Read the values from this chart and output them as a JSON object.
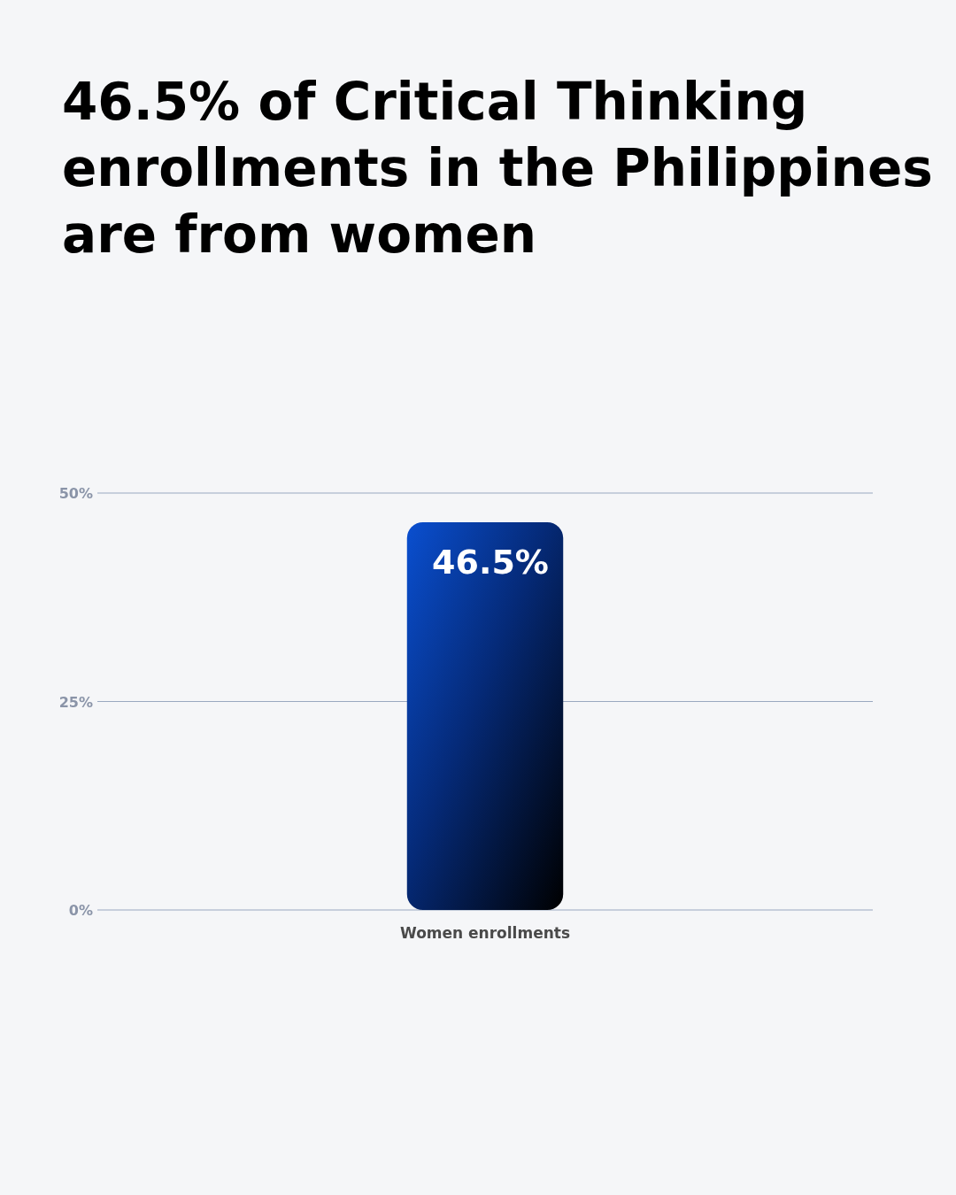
{
  "chart_data": {
    "type": "bar",
    "title": "46.5% of Critical Thinking enrollments in the Philippines are from women",
    "categories": [
      "Women enrollments"
    ],
    "values": [
      46.5
    ],
    "value_labels": [
      "46.5%"
    ],
    "color": "#0a4fd0",
    "ylim": [
      0,
      50
    ],
    "yticks": [
      {
        "value": 0,
        "label": "0%"
      },
      {
        "value": 25,
        "label": "25%"
      },
      {
        "value": 50,
        "label": "50%"
      }
    ],
    "grid": "y"
  }
}
